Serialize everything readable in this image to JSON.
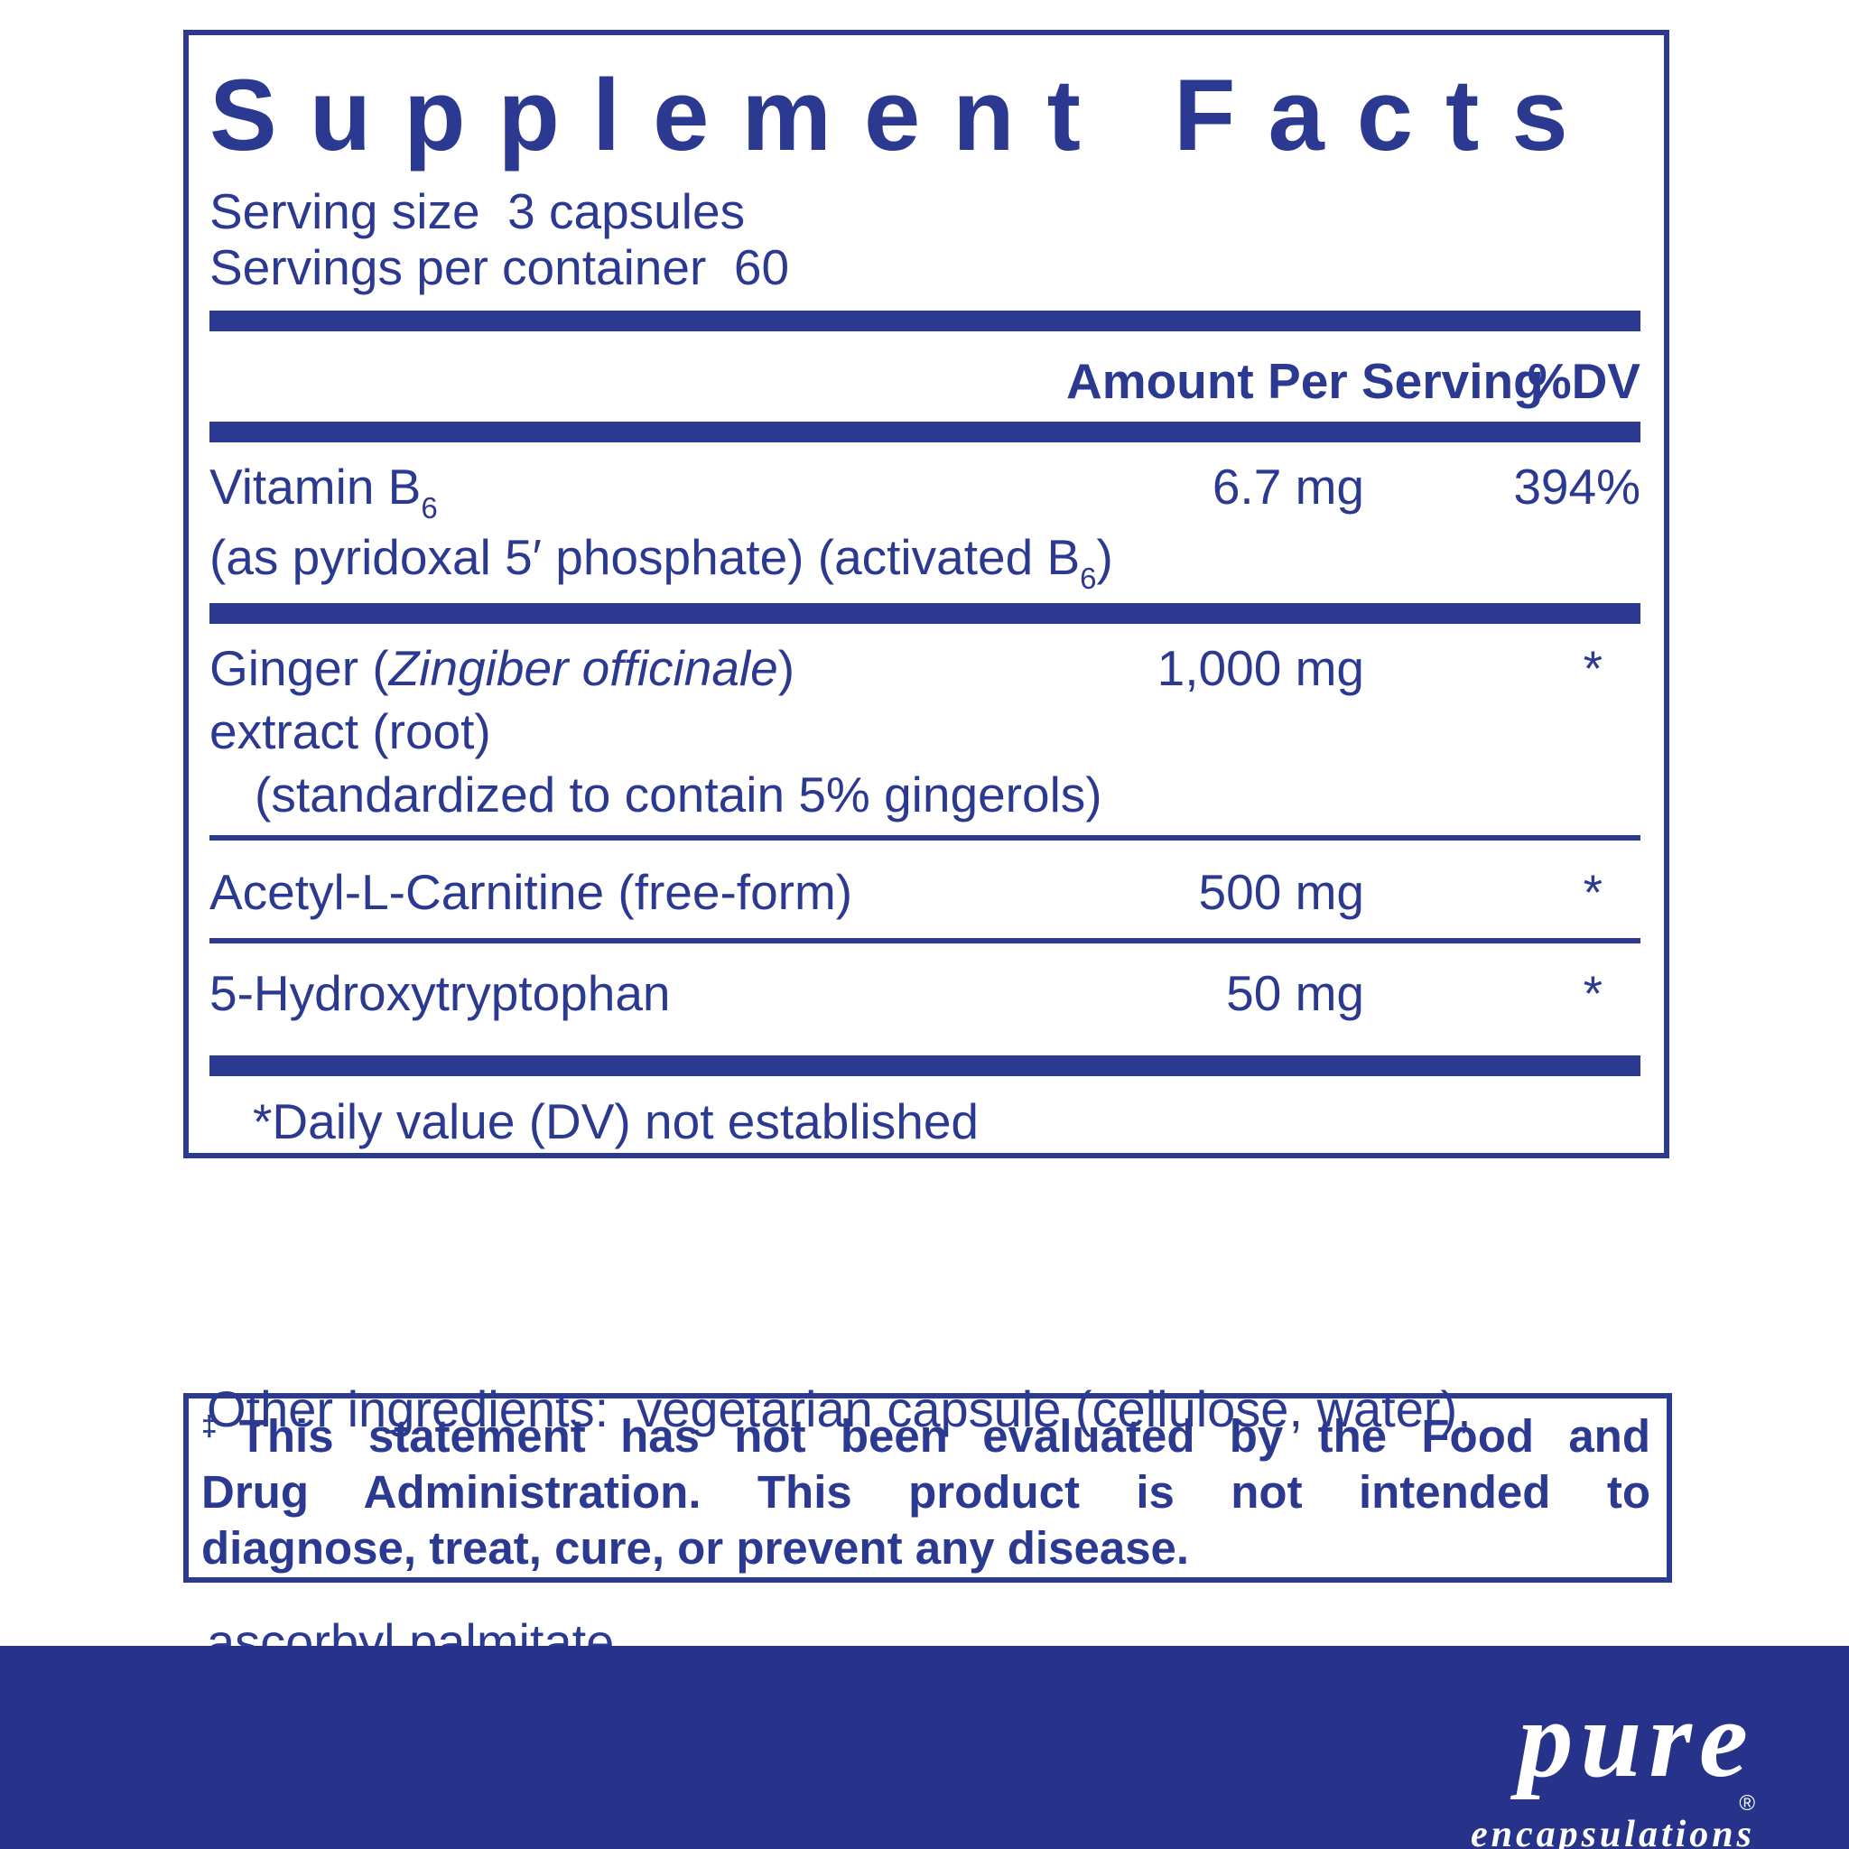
{
  "colors": {
    "navy": "#2b3990",
    "footer_bar": "#27338b",
    "logo_text": "#ffffff",
    "background": "#ffffff"
  },
  "facts": {
    "title": "Supplement Facts",
    "serving_size": "Serving size  3 capsules",
    "servings_per_container": "Servings per container  60",
    "header": {
      "amount": "Amount Per Serving",
      "dv": "%DV"
    },
    "rows": {
      "vitamin_b6": {
        "name": "Vitamin B",
        "name_sub": "6",
        "amount": "6.7 mg",
        "dv": "394%",
        "desc": "(as pyridoxal 5′ phosphate) (activated B",
        "desc_sub": "6",
        "desc_end": ")"
      },
      "ginger": {
        "name_pre": "Ginger (",
        "name_latin": "Zingiber officinale",
        "name_post": ")",
        "amount": "1,000 mg",
        "dv": "*",
        "line2": "extract (root)",
        "line3": "(standardized to contain 5% gingerols)"
      },
      "acetyl_l_carnitine": {
        "name": "Acetyl-L-Carnitine (free-form)",
        "amount": "500 mg",
        "dv": "*"
      },
      "hydroxytryptophan": {
        "name": "5-Hydroxytryptophan",
        "amount": "50 mg",
        "dv": "*"
      }
    },
    "footnote": "*Daily value (DV) not established"
  },
  "other_ingredients": {
    "line1": "Other ingredients:  vegetarian capsule (cellulose, water),",
    "line2": "ascorbyl palmitate"
  },
  "disclaimer": {
    "symbol": "‡",
    "line1": "This statement has not been evaluated by the Food and",
    "line2": "Drug Administration. This product is not intended to",
    "line3": "diagnose, treat, cure, or prevent any disease."
  },
  "brand": {
    "wordmark": "pure",
    "registered": "®",
    "subtext": "encapsulations"
  }
}
